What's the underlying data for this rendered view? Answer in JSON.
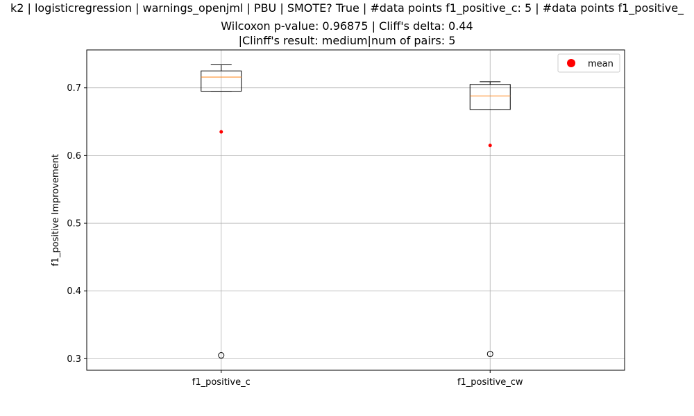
{
  "chart_data": {
    "type": "box",
    "title_lines": [
      "k2 | logisticregression | warnings_openjml | PBU | SMOTE? True | #data points f1_positive_c: 5 | #data points f1_positive_",
      "Wilcoxon p-value: 0.96875 | Cliff's delta: 0.44",
      "|Clinff's result: medium|num of pairs: 5"
    ],
    "xlabel": "",
    "ylabel": "f1_positive Improvement",
    "ylim": [
      0.283,
      0.756
    ],
    "yticks": [
      0.3,
      0.4,
      0.5,
      0.6,
      0.7
    ],
    "ytick_labels": [
      "0.3",
      "0.4",
      "0.5",
      "0.6",
      "0.7"
    ],
    "grid": true,
    "legend": {
      "position": "top-right",
      "entries": [
        "mean"
      ]
    },
    "colors": {
      "box": "#000000",
      "median": "#ff7f0e",
      "mean": "#ff0000",
      "grid": "#b0b0b0"
    },
    "categories": [
      "f1_positive_c",
      "f1_positive_cw"
    ],
    "boxes": [
      {
        "label": "f1_positive_c",
        "whisker_low": 0.695,
        "q1": 0.695,
        "median": 0.716,
        "q3": 0.725,
        "whisker_high": 0.734,
        "outliers": [
          0.305
        ],
        "mean": 0.635
      },
      {
        "label": "f1_positive_cw",
        "whisker_low": 0.668,
        "q1": 0.668,
        "median": 0.688,
        "q3": 0.705,
        "whisker_high": 0.709,
        "outliers": [
          0.307
        ],
        "mean": 0.615
      }
    ]
  }
}
